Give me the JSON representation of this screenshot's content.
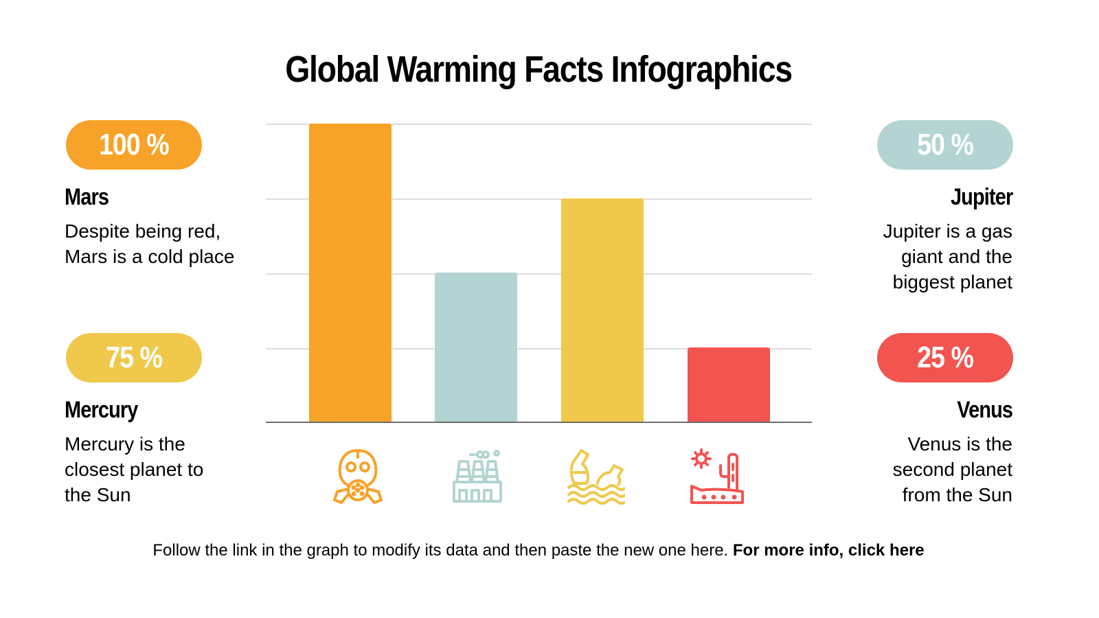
{
  "title": "Global Warming Facts Infographics",
  "colors": {
    "orange": "#F7A229",
    "teal": "#B3D4D3",
    "yellow": "#F0C94C",
    "red": "#F25450"
  },
  "cards": {
    "mars": {
      "percent": "100 %",
      "name": "Mars",
      "desc": "Despite being red, Mars is a cold place"
    },
    "mercury": {
      "percent": "75 %",
      "name": "Mercury",
      "desc": "Mercury is the closest planet to the Sun"
    },
    "jupiter": {
      "percent": "50 %",
      "name": "Jupiter",
      "desc": "Jupiter is a gas giant and the biggest planet"
    },
    "venus": {
      "percent": "25 %",
      "name": "Venus",
      "desc": "Venus is the second planet from the Sun"
    }
  },
  "icons": [
    "gas-mask-icon",
    "factory-icon",
    "bottles-in-water-icon",
    "desert-cactus-icon"
  ],
  "footer": {
    "text": "Follow the link in the graph to modify its data and then paste the new one here. ",
    "link": "For more info, click here"
  },
  "chart_data": {
    "type": "bar",
    "title": "Global Warming Facts Infographics",
    "categories": [
      "Mars",
      "Jupiter",
      "Mercury",
      "Venus"
    ],
    "values": [
      100,
      50,
      75,
      25
    ],
    "colors": [
      "#F7A229",
      "#B3D4D3",
      "#F0C94C",
      "#F25450"
    ],
    "xlabel": "",
    "ylabel": "",
    "ylim": [
      0,
      100
    ],
    "grid": true,
    "gridlines": [
      25,
      50,
      75,
      100
    ],
    "legend": "none (icons below bars, cards on sides)"
  }
}
